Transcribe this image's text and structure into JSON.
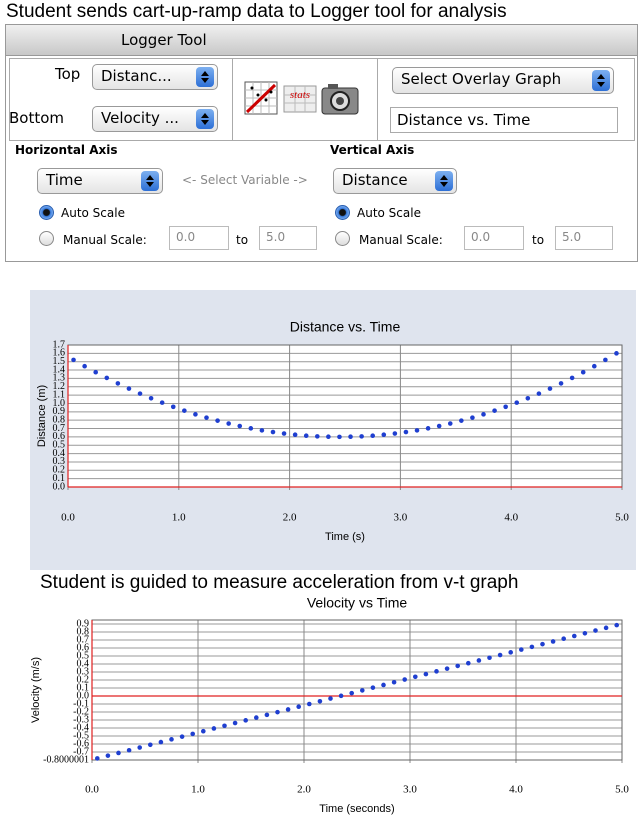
{
  "captions": {
    "top": "Student sends cart-up-ramp data to Logger tool for analysis",
    "middle": "Student is guided to measure acceleration from v-t graph"
  },
  "panel": {
    "title": "Logger Tool",
    "top_label": "Top",
    "top_select": "Distanc...",
    "bottom_label": "Bottom",
    "bottom_select": "Velocity ...",
    "stats_icon": "stats",
    "overlay_select": "Select Overlay Graph",
    "overlay_field": "Distance vs. Time",
    "hint": "<- Select Variable ->",
    "horizontal_axis": {
      "heading": "Horizontal Axis",
      "select": "Time",
      "auto": "Auto Scale",
      "manual": "Manual Scale:",
      "min": "0.0",
      "to": "to",
      "max": "5.0"
    },
    "vertical_axis": {
      "heading": "Vertical Axis",
      "select": "Distance",
      "auto": "Auto Scale",
      "manual": "Manual Scale:",
      "min": "0.0",
      "to": "to",
      "max": "5.0"
    }
  },
  "chart_data": [
    {
      "type": "scatter",
      "title": "Distance vs. Time",
      "x_label": "Time (s)",
      "y_label": "Distance (m)",
      "color": "#1f3fd0",
      "grid": true,
      "xlim": [
        0,
        5
      ],
      "ylim": [
        0,
        1.7
      ],
      "xticks": [
        {
          "value": 0,
          "label": "0.0"
        },
        {
          "value": 1,
          "label": "1.0"
        },
        {
          "value": 2,
          "label": "2.0"
        },
        {
          "value": 3,
          "label": "3.0"
        },
        {
          "value": 4,
          "label": "4.0"
        },
        {
          "value": 5,
          "label": "5.0"
        }
      ],
      "yticks": [
        {
          "value": 0,
          "label": "0.0"
        },
        0.1,
        0.2,
        0.3,
        0.4,
        0.5,
        0.6,
        0.7,
        0.8,
        0.9,
        {
          "value": 1,
          "label": "1.0"
        },
        1.1,
        1.2,
        1.3,
        1.4,
        1.5,
        1.6,
        1.7
      ],
      "x": [
        0.05,
        0.15,
        0.25,
        0.35,
        0.45,
        0.55,
        0.65,
        0.75,
        0.85,
        0.95,
        1.05,
        1.15,
        1.25,
        1.35,
        1.45,
        1.55,
        1.65,
        1.75,
        1.85,
        1.95,
        2.05,
        2.15,
        2.25,
        2.35,
        2.45,
        2.55,
        2.65,
        2.75,
        2.85,
        2.95,
        3.05,
        3.15,
        3.25,
        3.35,
        3.45,
        3.55,
        3.65,
        3.75,
        3.85,
        3.95,
        4.05,
        4.15,
        4.25,
        4.35,
        4.45,
        4.55,
        4.65,
        4.75,
        4.85,
        4.95
      ],
      "values": [
        1.522,
        1.446,
        1.374,
        1.306,
        1.24,
        1.178,
        1.118,
        1.062,
        1.01,
        0.96,
        0.914,
        0.87,
        0.83,
        0.794,
        0.76,
        0.73,
        0.702,
        0.678,
        0.658,
        0.64,
        0.626,
        0.614,
        0.606,
        0.602,
        0.6,
        0.602,
        0.606,
        0.614,
        0.626,
        0.64,
        0.658,
        0.678,
        0.702,
        0.73,
        0.76,
        0.794,
        0.83,
        0.87,
        0.914,
        0.96,
        1.01,
        1.062,
        1.118,
        1.178,
        1.24,
        1.306,
        1.374,
        1.446,
        1.522,
        1.6
      ]
    },
    {
      "type": "scatter",
      "title": "Velocity vs Time",
      "x_label": "Time (seconds)",
      "y_label": "Velocity (m/s)",
      "color": "#1f3fd0",
      "grid": true,
      "xlim": [
        0,
        5
      ],
      "ylim": [
        -0.8000001,
        0.95
      ],
      "xticks": [
        {
          "value": 0,
          "label": "0.0"
        },
        {
          "value": 1,
          "label": "1.0"
        },
        {
          "value": 2,
          "label": "2.0"
        },
        {
          "value": 3,
          "label": "3.0"
        },
        {
          "value": 4,
          "label": "4.0"
        },
        {
          "value": 5,
          "label": "5.0"
        }
      ],
      "yticks": [
        -0.8000001,
        -0.7,
        -0.6,
        -0.5,
        -0.4,
        -0.3,
        -0.2,
        -0.1,
        {
          "value": 0,
          "label": "0.0"
        },
        0.1,
        0.2,
        0.3,
        0.4,
        0.5,
        0.6,
        0.7,
        0.8,
        0.9
      ],
      "x": [
        0.05,
        0.15,
        0.25,
        0.35,
        0.45,
        0.55,
        0.65,
        0.75,
        0.85,
        0.95,
        1.05,
        1.15,
        1.25,
        1.35,
        1.45,
        1.55,
        1.65,
        1.75,
        1.85,
        1.95,
        2.05,
        2.15,
        2.25,
        2.35,
        2.45,
        2.55,
        2.65,
        2.75,
        2.85,
        2.95,
        3.05,
        3.15,
        3.25,
        3.35,
        3.45,
        3.55,
        3.65,
        3.75,
        3.85,
        3.95,
        4.05,
        4.15,
        4.25,
        4.35,
        4.45,
        4.55,
        4.65,
        4.75,
        4.85,
        4.95
      ],
      "values": [
        -0.78,
        -0.746,
        -0.712,
        -0.678,
        -0.644,
        -0.61,
        -0.576,
        -0.542,
        -0.508,
        -0.474,
        -0.44,
        -0.406,
        -0.372,
        -0.338,
        -0.304,
        -0.27,
        -0.236,
        -0.202,
        -0.168,
        -0.134,
        -0.1,
        -0.066,
        -0.032,
        0.002,
        0.036,
        0.07,
        0.104,
        0.138,
        0.172,
        0.206,
        0.24,
        0.274,
        0.308,
        0.342,
        0.376,
        0.41,
        0.444,
        0.478,
        0.512,
        0.546,
        0.58,
        0.614,
        0.648,
        0.682,
        0.716,
        0.75,
        0.784,
        0.818,
        0.852,
        0.886
      ]
    }
  ]
}
